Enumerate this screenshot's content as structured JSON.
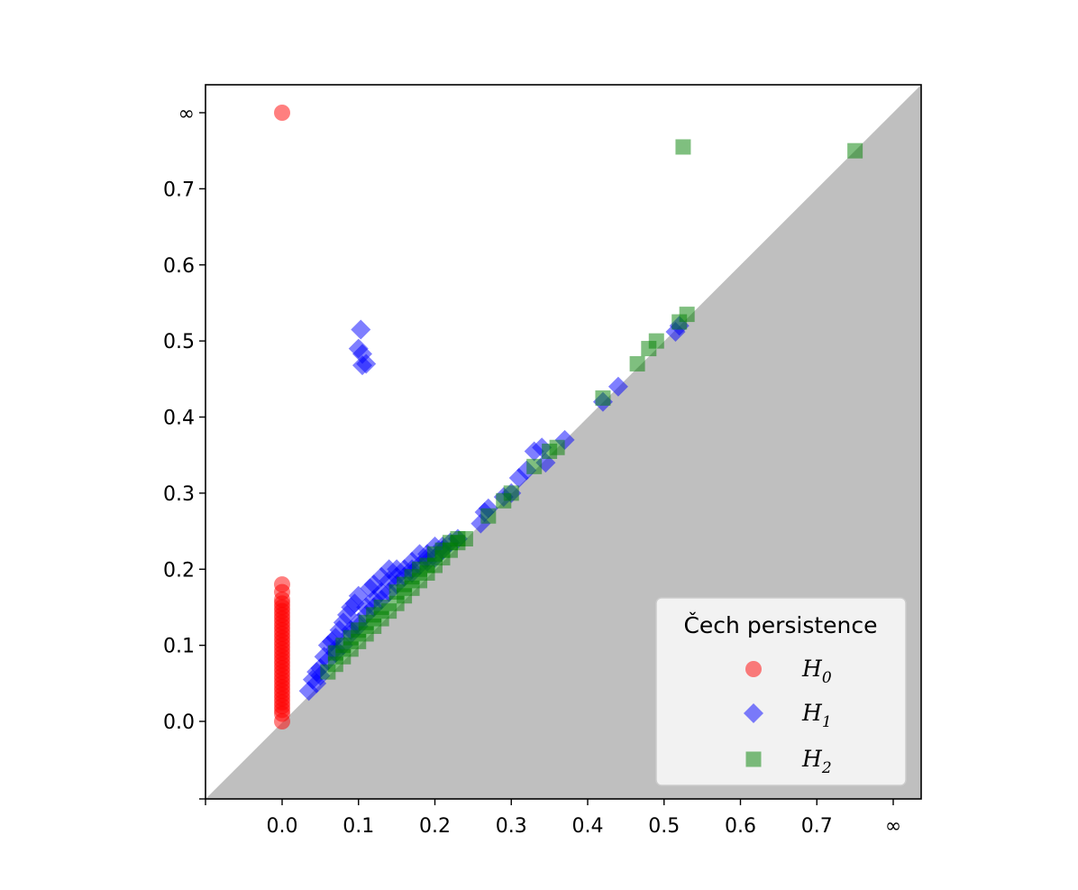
{
  "chart_data": {
    "type": "scatter",
    "title": "",
    "xlabel": "",
    "ylabel": "",
    "xlim": [
      -0.1,
      0.765
    ],
    "ylim": [
      -0.1,
      0.77
    ],
    "grid": false,
    "diagonal_shaded_below": true,
    "infinity_value": 0.8,
    "x_ticks": [
      {
        "value": 0.0,
        "label": "0.0"
      },
      {
        "value": 0.1,
        "label": "0.1"
      },
      {
        "value": 0.2,
        "label": "0.2"
      },
      {
        "value": 0.3,
        "label": "0.3"
      },
      {
        "value": 0.4,
        "label": "0.4"
      },
      {
        "value": 0.5,
        "label": "0.5"
      },
      {
        "value": 0.6,
        "label": "0.6"
      },
      {
        "value": 0.7,
        "label": "0.7"
      },
      {
        "value": 0.8,
        "label": "∞"
      }
    ],
    "y_ticks": [
      {
        "value": 0.0,
        "label": "0.0"
      },
      {
        "value": 0.1,
        "label": "0.1"
      },
      {
        "value": 0.2,
        "label": "0.2"
      },
      {
        "value": 0.3,
        "label": "0.3"
      },
      {
        "value": 0.4,
        "label": "0.4"
      },
      {
        "value": 0.5,
        "label": "0.5"
      },
      {
        "value": 0.6,
        "label": "0.6"
      },
      {
        "value": 0.7,
        "label": "0.7"
      },
      {
        "value": 0.8,
        "label": "∞"
      }
    ],
    "legend": {
      "title": "Čech persistence",
      "placement": "lower-right",
      "entries": [
        {
          "label_main": "H",
          "label_sub": "0",
          "series": 0
        },
        {
          "label_main": "H",
          "label_sub": "1",
          "series": 1
        },
        {
          "label_main": "H",
          "label_sub": "2",
          "series": 2
        }
      ]
    },
    "series": [
      {
        "name": "H0",
        "marker": "circle",
        "color": "#ff0000",
        "points": [
          [
            0.0,
            0.8
          ],
          [
            0.0,
            0.18
          ],
          [
            0.0,
            0.17
          ],
          [
            0.0,
            0.16
          ],
          [
            0.0,
            0.155
          ],
          [
            0.0,
            0.15
          ],
          [
            0.0,
            0.145
          ],
          [
            0.0,
            0.14
          ],
          [
            0.0,
            0.135
          ],
          [
            0.0,
            0.13
          ],
          [
            0.0,
            0.125
          ],
          [
            0.0,
            0.12
          ],
          [
            0.0,
            0.115
          ],
          [
            0.0,
            0.11
          ],
          [
            0.0,
            0.105
          ],
          [
            0.0,
            0.1
          ],
          [
            0.0,
            0.095
          ],
          [
            0.0,
            0.09
          ],
          [
            0.0,
            0.085
          ],
          [
            0.0,
            0.08
          ],
          [
            0.0,
            0.075
          ],
          [
            0.0,
            0.07
          ],
          [
            0.0,
            0.065
          ],
          [
            0.0,
            0.06
          ],
          [
            0.0,
            0.055
          ],
          [
            0.0,
            0.05
          ],
          [
            0.0,
            0.045
          ],
          [
            0.0,
            0.04
          ],
          [
            0.0,
            0.035
          ],
          [
            0.0,
            0.03
          ],
          [
            0.0,
            0.025
          ],
          [
            0.0,
            0.02
          ],
          [
            0.0,
            0.015
          ],
          [
            0.0,
            0.01
          ],
          [
            0.0,
            0.0
          ]
        ]
      },
      {
        "name": "H1",
        "marker": "diamond",
        "color": "#0000ff",
        "points": [
          [
            0.103,
            0.515
          ],
          [
            0.1,
            0.49
          ],
          [
            0.105,
            0.483
          ],
          [
            0.11,
            0.47
          ],
          [
            0.105,
            0.468
          ],
          [
            0.52,
            0.52
          ],
          [
            0.515,
            0.512
          ],
          [
            0.44,
            0.44
          ],
          [
            0.42,
            0.42
          ],
          [
            0.37,
            0.37
          ],
          [
            0.33,
            0.355
          ],
          [
            0.34,
            0.36
          ],
          [
            0.345,
            0.34
          ],
          [
            0.32,
            0.33
          ],
          [
            0.31,
            0.32
          ],
          [
            0.3,
            0.3
          ],
          [
            0.29,
            0.295
          ],
          [
            0.27,
            0.28
          ],
          [
            0.265,
            0.275
          ],
          [
            0.26,
            0.26
          ],
          [
            0.14,
            0.2
          ],
          [
            0.17,
            0.21
          ],
          [
            0.18,
            0.22
          ],
          [
            0.19,
            0.22
          ],
          [
            0.2,
            0.23
          ],
          [
            0.1,
            0.165
          ],
          [
            0.115,
            0.175
          ],
          [
            0.12,
            0.18
          ],
          [
            0.13,
            0.19
          ],
          [
            0.15,
            0.2
          ],
          [
            0.09,
            0.15
          ],
          [
            0.08,
            0.13
          ],
          [
            0.075,
            0.12
          ],
          [
            0.085,
            0.14
          ],
          [
            0.095,
            0.155
          ],
          [
            0.06,
            0.1
          ],
          [
            0.065,
            0.105
          ],
          [
            0.07,
            0.11
          ],
          [
            0.055,
            0.085
          ],
          [
            0.05,
            0.07
          ],
          [
            0.045,
            0.065
          ],
          [
            0.04,
            0.055
          ],
          [
            0.035,
            0.04
          ],
          [
            0.045,
            0.05
          ],
          [
            0.06,
            0.08
          ],
          [
            0.07,
            0.09
          ],
          [
            0.08,
            0.1
          ],
          [
            0.09,
            0.115
          ],
          [
            0.1,
            0.125
          ],
          [
            0.11,
            0.14
          ],
          [
            0.12,
            0.15
          ],
          [
            0.13,
            0.16
          ],
          [
            0.14,
            0.17
          ],
          [
            0.15,
            0.18
          ],
          [
            0.16,
            0.19
          ],
          [
            0.17,
            0.2
          ],
          [
            0.18,
            0.205
          ],
          [
            0.19,
            0.21
          ],
          [
            0.2,
            0.215
          ],
          [
            0.21,
            0.225
          ],
          [
            0.22,
            0.235
          ],
          [
            0.23,
            0.24
          ],
          [
            0.1,
            0.13
          ],
          [
            0.12,
            0.16
          ],
          [
            0.14,
            0.185
          ],
          [
            0.16,
            0.2
          ],
          [
            0.09,
            0.12
          ],
          [
            0.07,
            0.095
          ],
          [
            0.05,
            0.06
          ],
          [
            0.11,
            0.15
          ],
          [
            0.13,
            0.17
          ],
          [
            0.15,
            0.19
          ],
          [
            0.17,
            0.195
          ],
          [
            0.19,
            0.215
          ],
          [
            0.21,
            0.23
          ]
        ]
      },
      {
        "name": "H2",
        "marker": "square",
        "color": "#008000",
        "points": [
          [
            0.525,
            0.755
          ],
          [
            0.75,
            0.75
          ],
          [
            0.53,
            0.535
          ],
          [
            0.52,
            0.525
          ],
          [
            0.49,
            0.5
          ],
          [
            0.48,
            0.49
          ],
          [
            0.465,
            0.47
          ],
          [
            0.42,
            0.425
          ],
          [
            0.36,
            0.36
          ],
          [
            0.35,
            0.355
          ],
          [
            0.33,
            0.335
          ],
          [
            0.3,
            0.3
          ],
          [
            0.29,
            0.29
          ],
          [
            0.27,
            0.27
          ],
          [
            0.24,
            0.24
          ],
          [
            0.23,
            0.235
          ],
          [
            0.22,
            0.225
          ],
          [
            0.21,
            0.215
          ],
          [
            0.2,
            0.205
          ],
          [
            0.19,
            0.195
          ],
          [
            0.18,
            0.185
          ],
          [
            0.17,
            0.175
          ],
          [
            0.16,
            0.165
          ],
          [
            0.15,
            0.155
          ],
          [
            0.14,
            0.145
          ],
          [
            0.13,
            0.135
          ],
          [
            0.12,
            0.125
          ],
          [
            0.11,
            0.115
          ],
          [
            0.1,
            0.105
          ],
          [
            0.09,
            0.095
          ],
          [
            0.08,
            0.085
          ],
          [
            0.07,
            0.075
          ],
          [
            0.06,
            0.065
          ],
          [
            0.15,
            0.17
          ],
          [
            0.17,
            0.19
          ],
          [
            0.19,
            0.205
          ],
          [
            0.21,
            0.225
          ],
          [
            0.13,
            0.15
          ],
          [
            0.11,
            0.13
          ],
          [
            0.09,
            0.11
          ],
          [
            0.07,
            0.09
          ],
          [
            0.2,
            0.22
          ],
          [
            0.22,
            0.235
          ],
          [
            0.16,
            0.18
          ],
          [
            0.12,
            0.14
          ],
          [
            0.1,
            0.12
          ],
          [
            0.08,
            0.1
          ],
          [
            0.23,
            0.24
          ],
          [
            0.18,
            0.2
          ]
        ]
      }
    ]
  }
}
